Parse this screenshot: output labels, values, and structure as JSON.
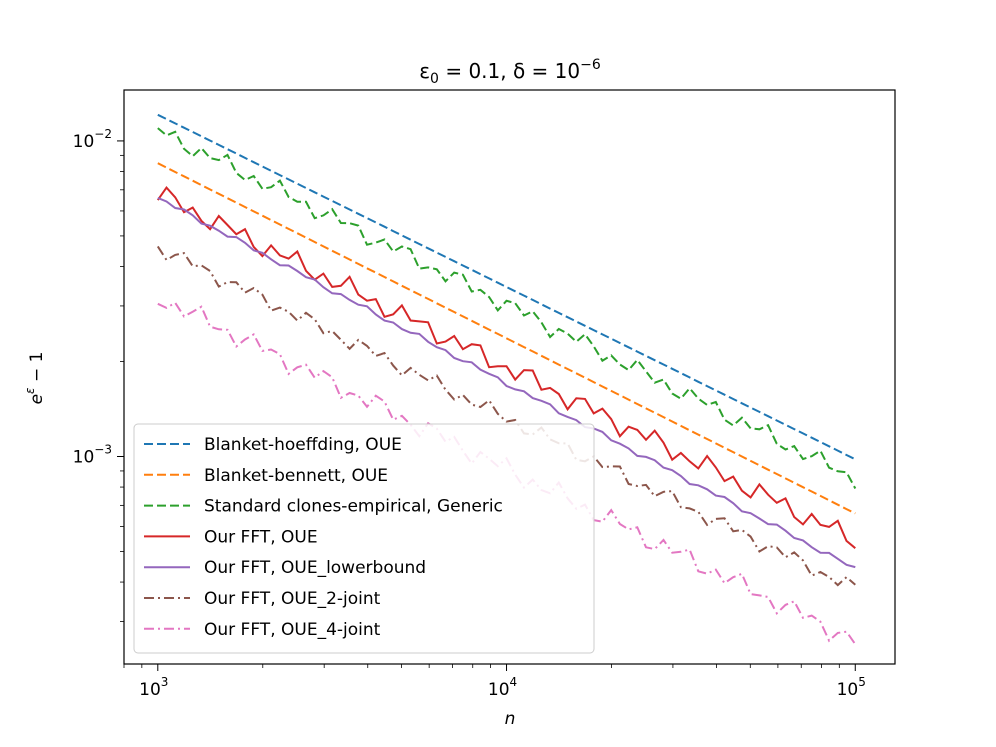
{
  "chart_data": {
    "type": "line",
    "title": {
      "base": "ε",
      "sub": "0",
      "mid": " = 0.1, δ = 10",
      "sup": "−6"
    },
    "xlabel": "n",
    "ylabel": {
      "base": "e",
      "sup": "ε",
      "rest": " − 1"
    },
    "xscale": "log",
    "yscale": "log",
    "xlim": [
      800,
      130000
    ],
    "ylim": [
      0.00022,
      0.0145
    ],
    "xticks": [
      {
        "value": 1000,
        "base": "10",
        "exp": "3"
      },
      {
        "value": 10000,
        "base": "10",
        "exp": "4"
      },
      {
        "value": 100000,
        "base": "10",
        "exp": "5"
      }
    ],
    "yticks": [
      {
        "value": 0.001,
        "base": "10",
        "exp": "−3"
      },
      {
        "value": 0.01,
        "base": "10",
        "exp": "−2"
      }
    ],
    "legend_position": "lower-left",
    "series": [
      {
        "name": "Blanket-hoeffding, OUE",
        "color": "#1f77b4",
        "dash": "dashed",
        "start": 0.0121,
        "end": 0.00098,
        "noise": 0
      },
      {
        "name": "Blanket-bennett, OUE",
        "color": "#ff7f0e",
        "dash": "dashed",
        "start": 0.0085,
        "end": 0.00066,
        "noise": 0
      },
      {
        "name": "Standard clones-empirical, Generic",
        "color": "#2ca02c",
        "dash": "dashed",
        "start": 0.0108,
        "end": 0.00085,
        "noise": 0.035
      },
      {
        "name": "Our FFT, OUE",
        "color": "#d62728",
        "dash": "solid",
        "start": 0.0068,
        "end": 0.00054,
        "noise": 0.04
      },
      {
        "name": "Our FFT, OUE_lowerbound",
        "color": "#9467bd",
        "dash": "solid",
        "start": 0.0066,
        "end": 0.00044,
        "noise": 0.01
      },
      {
        "name": "Our FFT, OUE_2-joint",
        "color": "#8c564b",
        "dash": "dashdot",
        "start": 0.0046,
        "end": 0.00038,
        "noise": 0.03
      },
      {
        "name": "Our FFT, OUE_4-joint",
        "color": "#e377c2",
        "dash": "dashdot",
        "start": 0.0032,
        "end": 0.00026,
        "noise": 0.04
      }
    ]
  }
}
